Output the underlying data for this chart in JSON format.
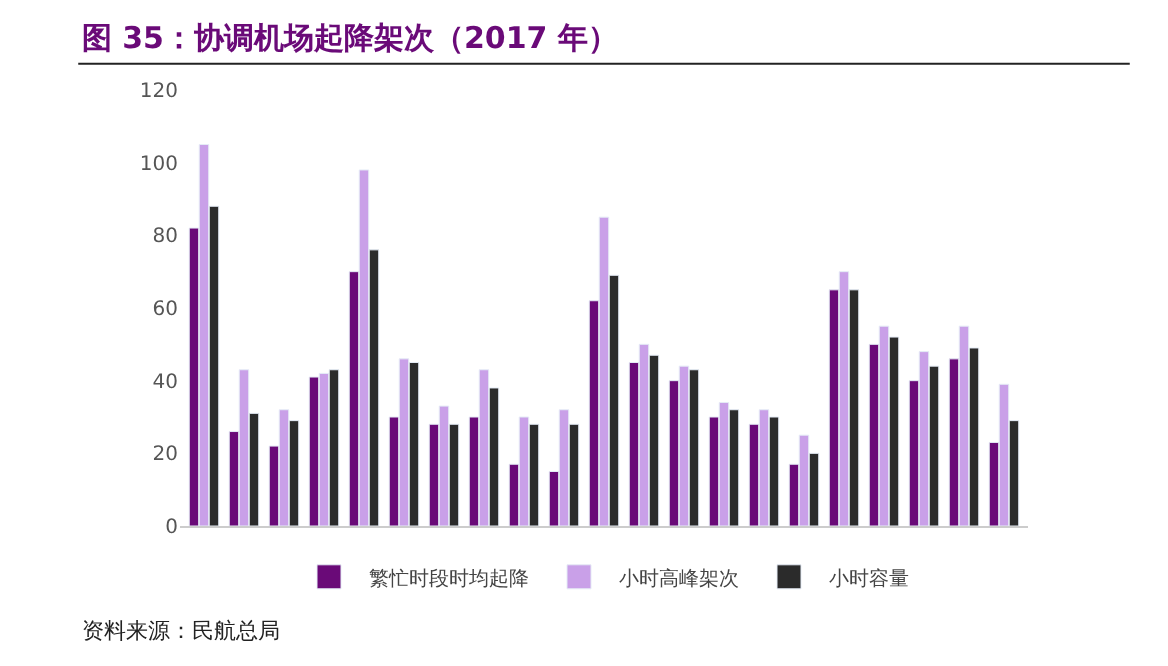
{
  "chart_data": {
    "type": "bar",
    "title": "图 35：协调机场起降架次（2017 年）",
    "categories": [
      null,
      null,
      null,
      null,
      null,
      null,
      null,
      null,
      null,
      null,
      null,
      null,
      null,
      null,
      null,
      null,
      null,
      null,
      null,
      null,
      null
    ],
    "series": [
      {
        "name": "繁忙时段时均起降",
        "color": "#6a0a78",
        "values": [
          82,
          26,
          22,
          41,
          70,
          30,
          28,
          30,
          17,
          15,
          62,
          45,
          40,
          30,
          28,
          17,
          65,
          50,
          40,
          46,
          23
        ]
      },
      {
        "name": "小时高峰架次",
        "color": "#c9a0e8",
        "values": [
          105,
          43,
          32,
          42,
          98,
          46,
          33,
          43,
          30,
          32,
          85,
          50,
          44,
          34,
          32,
          25,
          70,
          55,
          48,
          55,
          39
        ]
      },
      {
        "name": "小时容量",
        "color": "#2b2b2b",
        "values": [
          88,
          31,
          29,
          43,
          76,
          45,
          28,
          38,
          28,
          28,
          69,
          47,
          43,
          32,
          30,
          20,
          65,
          52,
          44,
          49,
          29
        ]
      }
    ],
    "ylim": [
      0,
      120
    ],
    "yticks": [
      0,
      20,
      40,
      60,
      80,
      100,
      120
    ],
    "legend": "bottom",
    "annotations": [
      "资料来源：民航总局"
    ]
  }
}
